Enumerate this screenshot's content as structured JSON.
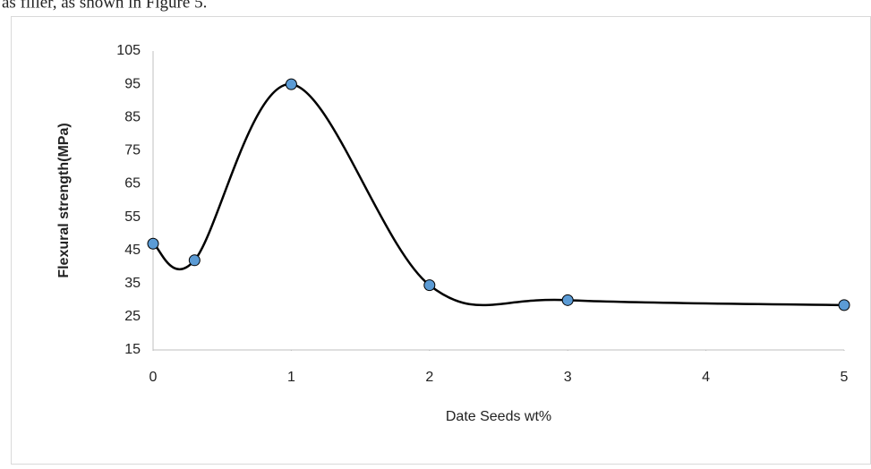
{
  "document_text": "as filler, as shown in Figure 5.",
  "chart_data": {
    "type": "line",
    "x_label": "Date Seeds wt%",
    "y_label": "Flexural strength(MPa)",
    "x": [
      0,
      0.3,
      1,
      2,
      3,
      5
    ],
    "values": [
      47,
      42,
      95,
      34.5,
      30,
      28.5
    ],
    "color": "#000000",
    "marker_color": "#5b9bd5",
    "smooth": true,
    "xlim": [
      0,
      5
    ],
    "xticks": [
      0,
      1,
      2,
      3,
      4,
      5
    ],
    "ylim": [
      15,
      105
    ],
    "yticks": [
      15,
      25,
      35,
      45,
      55,
      65,
      75,
      85,
      95,
      105
    ],
    "grid": false
  }
}
